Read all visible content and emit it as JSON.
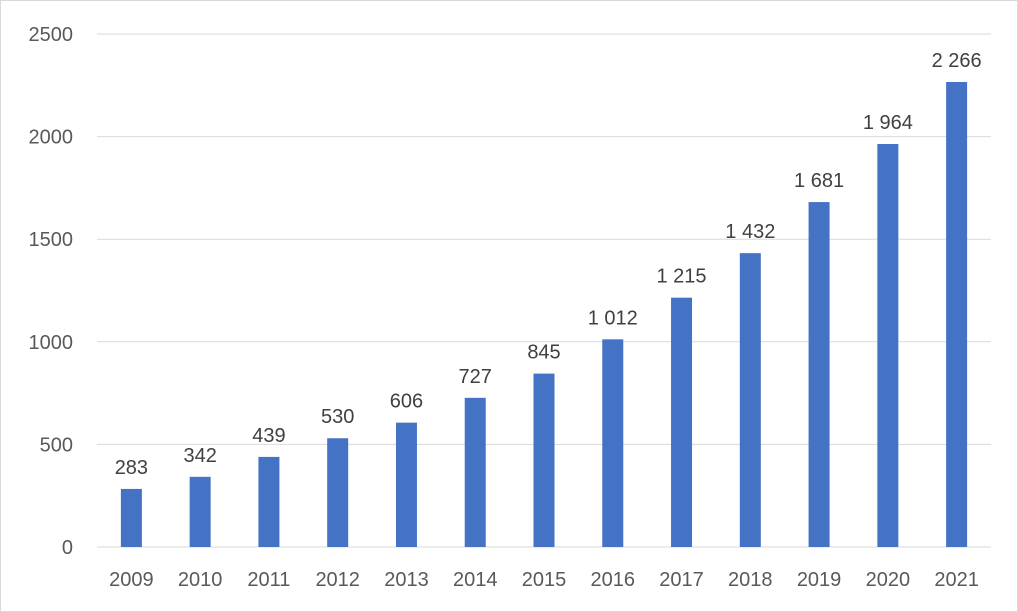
{
  "chart_data": {
    "type": "bar",
    "categories": [
      "2009",
      "2010",
      "2011",
      "2012",
      "2013",
      "2014",
      "2015",
      "2016",
      "2017",
      "2018",
      "2019",
      "2020",
      "2021"
    ],
    "values": [
      283,
      342,
      439,
      530,
      606,
      727,
      845,
      1012,
      1215,
      1432,
      1681,
      1964,
      2266
    ],
    "data_labels": [
      "283",
      "342",
      "439",
      "530",
      "606",
      "727",
      "845",
      "1 012",
      "1 215",
      "1 432",
      "1 681",
      "1 964",
      "2 266"
    ],
    "y_ticks": [
      "0",
      "500",
      "1000",
      "1500",
      "2000",
      "2500"
    ],
    "ylim": [
      0,
      2500
    ],
    "title": "",
    "xlabel": "",
    "ylabel": "",
    "grid": "horizontal",
    "legend": "none",
    "bar_color": "#4472c4"
  }
}
